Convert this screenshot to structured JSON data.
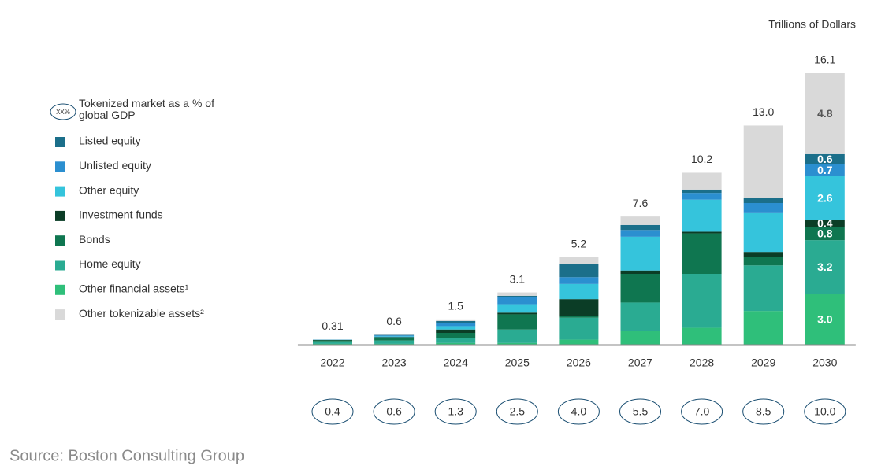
{
  "chart_data": {
    "type": "stacked_bar",
    "unit_label": "Trillions of Dollars",
    "categories": [
      "2022",
      "2023",
      "2024",
      "2025",
      "2026",
      "2027",
      "2028",
      "2029",
      "2030"
    ],
    "series": [
      {
        "name": "Listed equity",
        "color": "#1b6f8a",
        "values": [
          0.005,
          0.03,
          0.1,
          0.1,
          0.8,
          0.3,
          0.2,
          0.3,
          0.6
        ],
        "value_labels": [
          null,
          null,
          null,
          null,
          null,
          null,
          null,
          null,
          "0.6"
        ]
      },
      {
        "name": "Unlisted equity",
        "color": "#2b8fd0",
        "values": [
          0.01,
          0.05,
          0.2,
          0.4,
          0.4,
          0.4,
          0.4,
          0.6,
          0.7
        ],
        "value_labels": [
          null,
          null,
          null,
          null,
          null,
          null,
          null,
          null,
          "0.7"
        ]
      },
      {
        "name": "Other equity",
        "color": "#35c4dc",
        "values": [
          0.01,
          0.05,
          0.2,
          0.5,
          0.9,
          2.0,
          1.9,
          2.3,
          2.6
        ],
        "value_labels": [
          null,
          null,
          null,
          null,
          null,
          null,
          null,
          null,
          "2.6"
        ]
      },
      {
        "name": "Investment funds",
        "color": "#0b3d26",
        "values": [
          0.02,
          0.05,
          0.2,
          0.1,
          1.0,
          0.2,
          0.1,
          0.3,
          0.4
        ],
        "value_labels": [
          null,
          null,
          null,
          null,
          null,
          null,
          null,
          null,
          "0.4"
        ]
      },
      {
        "name": "Bonds",
        "color": "#0f7650",
        "values": [
          0.06,
          0.15,
          0.3,
          0.9,
          0.1,
          1.7,
          2.4,
          0.5,
          0.8
        ],
        "value_labels": [
          null,
          null,
          null,
          null,
          null,
          null,
          null,
          null,
          "0.8"
        ]
      },
      {
        "name": "Home equity",
        "color": "#2aab92",
        "values": [
          0.15,
          0.2,
          0.3,
          0.8,
          1.3,
          1.7,
          3.2,
          2.7,
          3.2
        ],
        "value_labels": [
          null,
          null,
          null,
          null,
          null,
          null,
          null,
          null,
          "3.2"
        ]
      },
      {
        "name": "Other financial assets¹",
        "color": "#2fbf7a",
        "values": [
          0.05,
          0.05,
          0.1,
          0.1,
          0.3,
          0.8,
          1.0,
          2.0,
          3.0
        ],
        "value_labels": [
          null,
          null,
          null,
          null,
          null,
          null,
          null,
          null,
          "3.0"
        ]
      },
      {
        "name": "Other tokenizable assets²",
        "color": "#d9d9d9",
        "values": [
          0.005,
          0.02,
          0.1,
          0.2,
          0.4,
          0.5,
          1.0,
          4.3,
          4.8
        ],
        "value_labels": [
          null,
          null,
          null,
          null,
          null,
          null,
          null,
          null,
          "4.8"
        ]
      }
    ],
    "totals": {
      "values": [
        0.31,
        0.6,
        1.5,
        3.1,
        5.2,
        7.6,
        10.2,
        13.0,
        16.1
      ],
      "value_labels": [
        "0.31",
        "0.6",
        "1.5",
        "3.1",
        "5.2",
        "7.6",
        "10.2",
        "13.0",
        "16.1"
      ]
    },
    "gdp_share": {
      "label": "Tokenized market as a % of global GDP",
      "legend_icon": "XX%",
      "values": [
        0.4,
        0.6,
        1.3,
        2.5,
        4.0,
        5.5,
        7.0,
        8.5,
        10.0
      ],
      "value_labels": [
        "0.4",
        "0.6",
        "1.3",
        "2.5",
        "4.0",
        "5.5",
        "7.0",
        "8.5",
        "10.0"
      ]
    },
    "source": "Source: Boston Consulting Group"
  }
}
